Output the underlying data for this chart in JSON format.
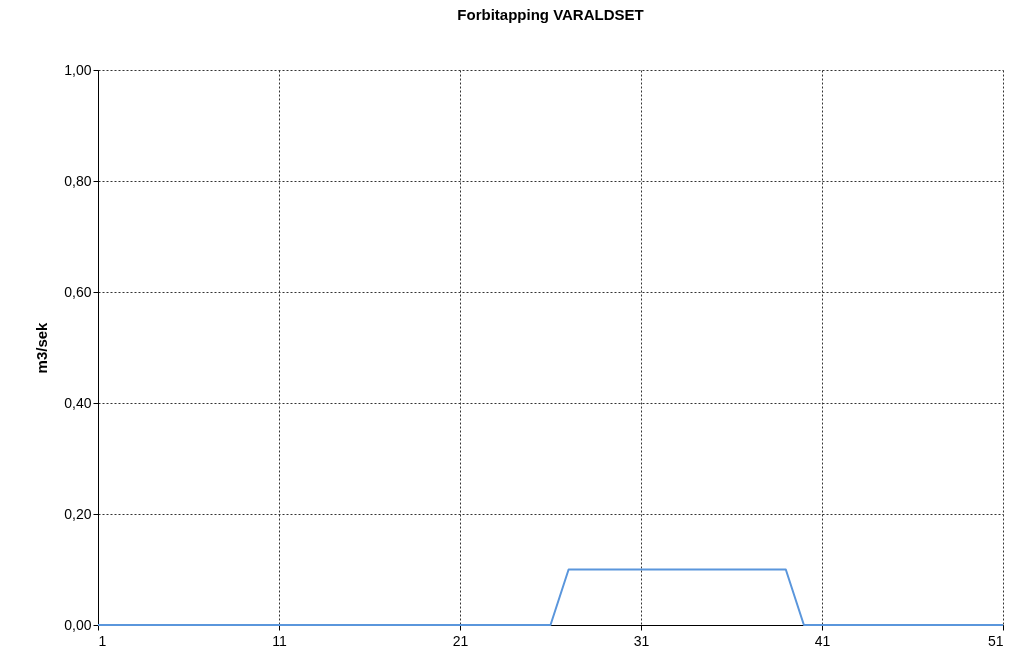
{
  "chart_data": {
    "type": "line",
    "title": "Forbitapping  VARALDSET",
    "ylabel": "m3/sek",
    "series": [
      {
        "color": "#5a96dc",
        "x": [
          1,
          26,
          27,
          39,
          40,
          51
        ],
        "values": [
          0,
          0,
          0.1,
          0.1,
          0,
          0
        ]
      }
    ],
    "xlim": [
      1,
      51
    ],
    "xticks": [
      1,
      11,
      21,
      31,
      41,
      51
    ],
    "ylim": [
      0,
      1
    ],
    "yticks": [
      {
        "value": 0,
        "label": "0,00"
      },
      {
        "value": 0.2,
        "label": "0,20"
      },
      {
        "value": 0.4,
        "label": "0,40"
      },
      {
        "value": 0.6,
        "label": "0,60"
      },
      {
        "value": 0.8,
        "label": "0,80"
      },
      {
        "value": 1,
        "label": "1,00"
      }
    ],
    "grid": true,
    "legend": false,
    "marker": "none",
    "line_style": "solid"
  }
}
